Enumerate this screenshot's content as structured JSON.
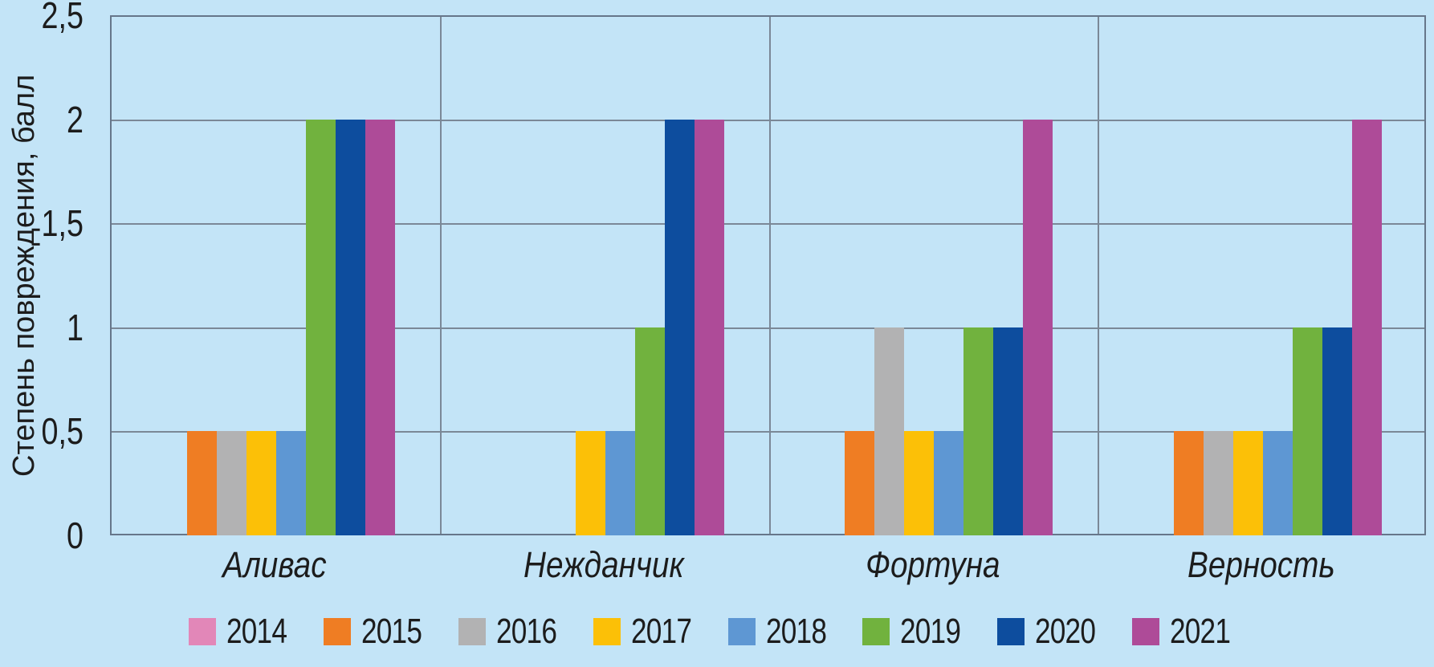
{
  "chart_data": {
    "type": "bar",
    "title": "",
    "ylabel": "Степень повреждения, балл",
    "xlabel": "",
    "ylim": [
      0,
      2.5
    ],
    "ytick_step": 0.5,
    "yticks": [
      0,
      0.5,
      1,
      1.5,
      2,
      2.5
    ],
    "ytick_labels": [
      "0",
      "0,5",
      "1",
      "1,5",
      "2",
      "2,5"
    ],
    "grid": true,
    "legend_position": "bottom",
    "categories": [
      "Аливас",
      "Нежданчик",
      "Фортуна",
      "Верность"
    ],
    "series": [
      {
        "name": "2014",
        "color": "#e287b8",
        "values": [
          0,
          0,
          0,
          0
        ]
      },
      {
        "name": "2015",
        "color": "#ef7d23",
        "values": [
          0.5,
          0,
          0.5,
          0.5
        ]
      },
      {
        "name": "2016",
        "color": "#b2b2b3",
        "values": [
          0.5,
          0,
          1,
          0.5
        ]
      },
      {
        "name": "2017",
        "color": "#fcc007",
        "values": [
          0.5,
          0.5,
          0.5,
          0.5
        ]
      },
      {
        "name": "2018",
        "color": "#5e97d3",
        "values": [
          0.5,
          0.5,
          0.5,
          0.5
        ]
      },
      {
        "name": "2019",
        "color": "#71b23e",
        "values": [
          2,
          1,
          1,
          1
        ]
      },
      {
        "name": "2020",
        "color": "#0d4d9e",
        "values": [
          2,
          2,
          1,
          1
        ]
      },
      {
        "name": "2021",
        "color": "#ae4b98",
        "values": [
          2,
          2,
          2,
          2
        ]
      }
    ],
    "colors": {
      "background": "#c3e4f7",
      "plot_border": "#66768a",
      "gridline": "#7b8897",
      "text": "#1c1c1c"
    }
  }
}
